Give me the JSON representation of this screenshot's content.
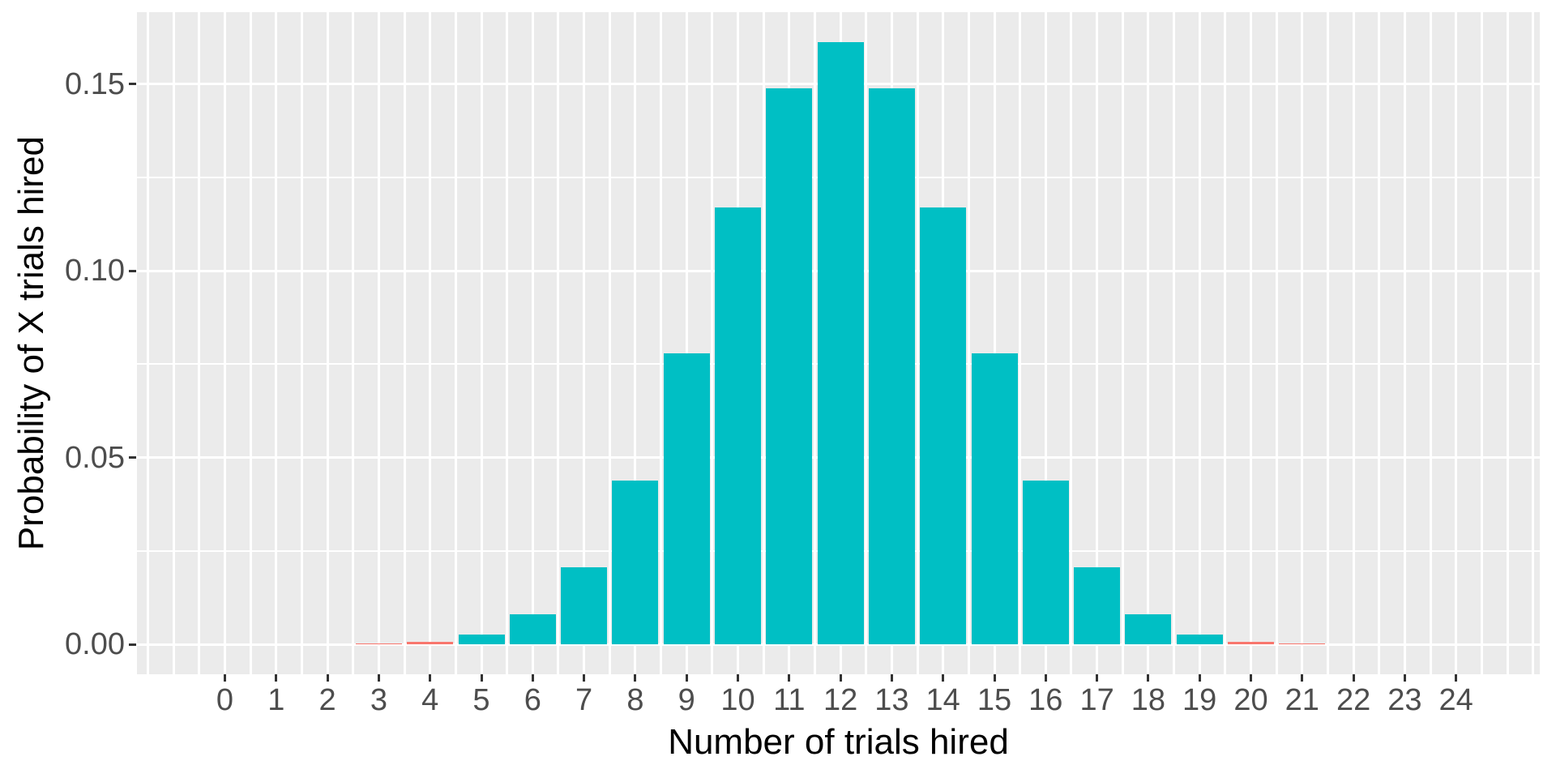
{
  "chart_data": {
    "type": "bar",
    "title": "",
    "xlabel": "Number of trials hired",
    "ylabel": "Probability of X trials hired",
    "x": [
      0,
      1,
      2,
      3,
      4,
      5,
      6,
      7,
      8,
      9,
      10,
      11,
      12,
      13,
      14,
      15,
      16,
      17,
      18,
      19,
      20,
      21,
      22,
      23,
      24
    ],
    "x_tick_labels": [
      "0",
      "1",
      "2",
      "3",
      "4",
      "5",
      "6",
      "7",
      "8",
      "9",
      "10",
      "11",
      "12",
      "13",
      "14",
      "15",
      "16",
      "17",
      "18",
      "19",
      "20",
      "21",
      "22",
      "23",
      "24"
    ],
    "values": [
      1e-07,
      1.4e-06,
      1.64e-05,
      0.000121,
      0.000633,
      0.002533,
      0.008023,
      0.020633,
      0.043843,
      0.077942,
      0.116898,
      0.148854,
      0.16118,
      0.148854,
      0.116898,
      0.077942,
      0.043843,
      0.020633,
      0.008023,
      0.002533,
      0.000633,
      0.000121,
      1.64e-05,
      1.4e-06,
      1e-07
    ],
    "bar_colors": [
      "#F8766D",
      "#F8766D",
      "#F8766D",
      "#F8766D",
      "#F8766D",
      "#00BFC4",
      "#00BFC4",
      "#00BFC4",
      "#00BFC4",
      "#00BFC4",
      "#00BFC4",
      "#00BFC4",
      "#00BFC4",
      "#00BFC4",
      "#00BFC4",
      "#00BFC4",
      "#00BFC4",
      "#00BFC4",
      "#00BFC4",
      "#00BFC4",
      "#F8766D",
      "#F8766D",
      "#F8766D",
      "#F8766D",
      "#F8766D"
    ],
    "y_ticks": [
      {
        "value": 0.0,
        "label": "0.00"
      },
      {
        "value": 0.05,
        "label": "0.05"
      },
      {
        "value": 0.1,
        "label": "0.10"
      },
      {
        "value": 0.15,
        "label": "0.15"
      }
    ],
    "y_minor_ticks": [
      0.025,
      0.075,
      0.125
    ],
    "ylim": [
      -0.0082,
      0.1772
    ],
    "xlim": [
      -1.71,
      25.71
    ],
    "legend": "none",
    "grid": "white major and minor gridlines on gray panel",
    "colors": {
      "teal": "#00BFC4",
      "salmon": "#F8766D",
      "panel_background": "#EBEBEB",
      "gridline": "#FFFFFF",
      "tick_label": "#4D4D4D",
      "tick_mark": "#333333",
      "axis_title": "#000000"
    }
  }
}
